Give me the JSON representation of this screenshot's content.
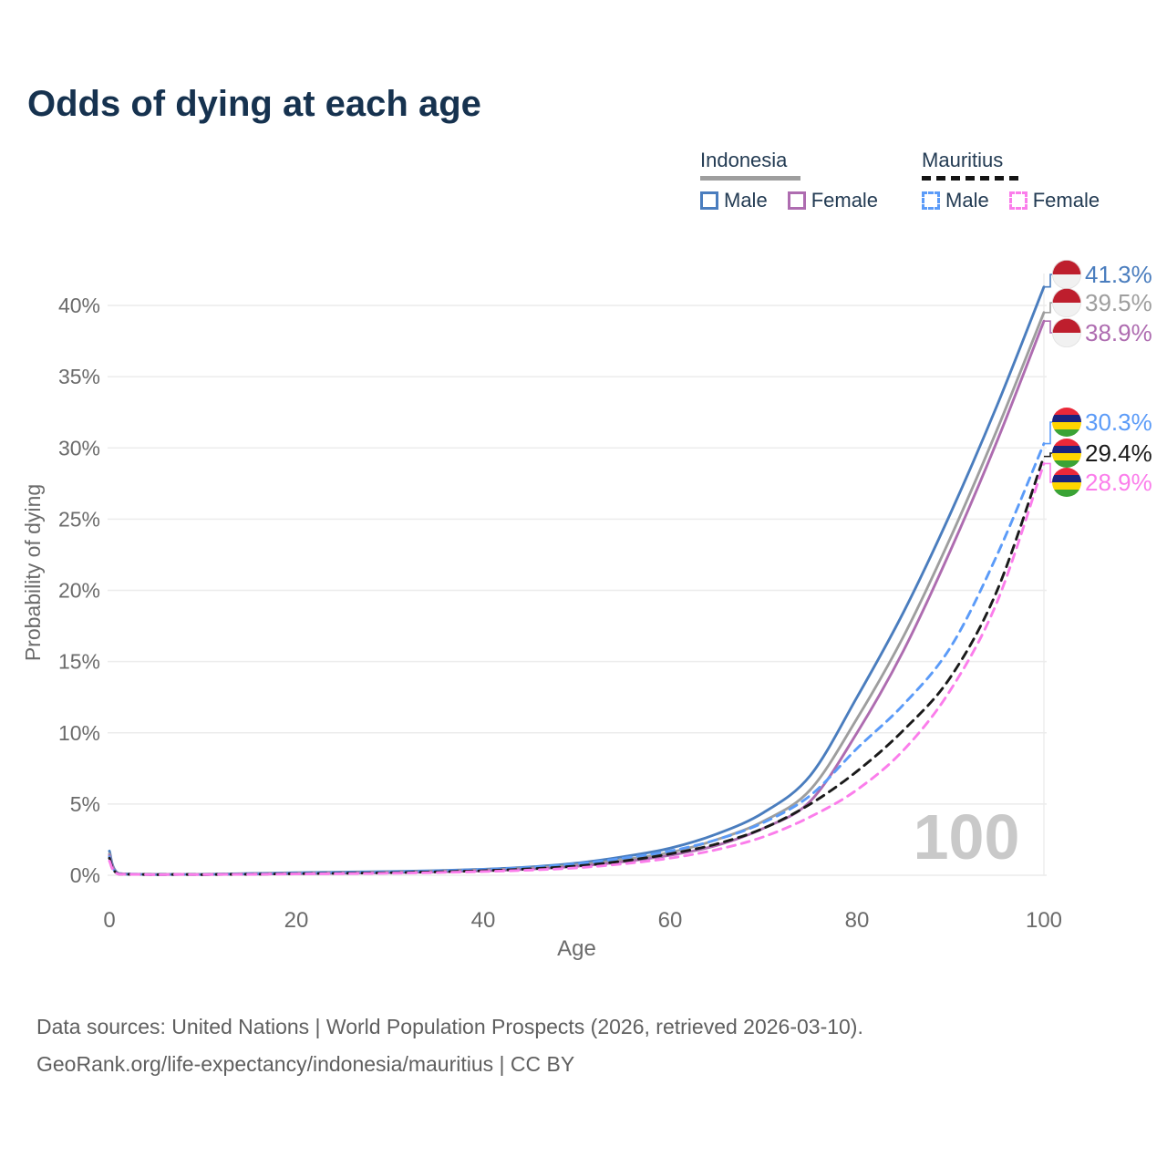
{
  "title": "Odds of dying at each age",
  "legend": {
    "groups": [
      {
        "country": "Indonesia",
        "line_style": "solid",
        "underline_color": "#9E9E9E",
        "items": [
          {
            "label": "Male",
            "color": "#4A7DBE"
          },
          {
            "label": "Female",
            "color": "#AE6CB0"
          }
        ]
      },
      {
        "country": "Mauritius",
        "line_style": "dashed",
        "underline_color": "#141414",
        "items": [
          {
            "label": "Male",
            "color": "#5B9BF8"
          },
          {
            "label": "Female",
            "color": "#FB7DEB"
          }
        ]
      }
    ]
  },
  "chart_data": {
    "type": "line",
    "title": "Odds of dying at each age",
    "xlabel": "Age",
    "ylabel": "Probability of dying",
    "xlim": [
      0,
      100
    ],
    "ylim_percent": [
      0,
      43
    ],
    "x_ticks": [
      0,
      20,
      40,
      60,
      80,
      100
    ],
    "y_ticks_percent": [
      0,
      5,
      10,
      15,
      20,
      25,
      30,
      35,
      40
    ],
    "grid": "horizontal-only, plus right edge vertical line at age 100",
    "legend_position": "top-right",
    "watermark": "100",
    "x_ages": [
      0,
      1,
      5,
      10,
      15,
      20,
      25,
      30,
      35,
      40,
      45,
      50,
      55,
      60,
      65,
      70,
      75,
      80,
      85,
      90,
      95,
      100
    ],
    "series": [
      {
        "name": "Indonesia Male",
        "country": "Indonesia",
        "sex": "Male",
        "flag": "indonesia",
        "color": "#4A7DBE",
        "dash": "solid",
        "end_label": "41.3%",
        "end_value": 41.3,
        "values": [
          1.7,
          0.12,
          0.06,
          0.07,
          0.12,
          0.18,
          0.22,
          0.26,
          0.32,
          0.42,
          0.58,
          0.85,
          1.3,
          1.9,
          2.9,
          4.4,
          7.0,
          12.5,
          18.5,
          25.4,
          33.0,
          41.3
        ]
      },
      {
        "name": "Indonesia Both sexes",
        "country": "Indonesia",
        "sex": "Both",
        "flag": "indonesia",
        "color": "#9E9E9E",
        "dash": "solid",
        "end_label": "39.5%",
        "end_value": 39.5,
        "values": [
          1.5,
          0.11,
          0.05,
          0.06,
          0.1,
          0.15,
          0.18,
          0.22,
          0.28,
          0.37,
          0.5,
          0.73,
          1.1,
          1.6,
          2.5,
          3.8,
          6.0,
          11.0,
          16.8,
          23.7,
          31.3,
          39.5
        ]
      },
      {
        "name": "Indonesia Female",
        "country": "Indonesia",
        "sex": "Female",
        "flag": "indonesia",
        "color": "#AE6CB0",
        "dash": "solid",
        "end_label": "38.9%",
        "end_value": 38.9,
        "values": [
          1.4,
          0.1,
          0.05,
          0.05,
          0.08,
          0.11,
          0.14,
          0.18,
          0.23,
          0.31,
          0.43,
          0.63,
          0.95,
          1.4,
          2.1,
          3.3,
          5.2,
          10.0,
          15.8,
          22.8,
          30.5,
          38.9
        ]
      },
      {
        "name": "Mauritius Male",
        "country": "Mauritius",
        "sex": "Male",
        "flag": "mauritius",
        "color": "#5B9BF8",
        "dash": "dashed",
        "end_label": "30.3%",
        "end_value": 30.3,
        "values": [
          1.3,
          0.09,
          0.04,
          0.05,
          0.09,
          0.14,
          0.18,
          0.23,
          0.3,
          0.4,
          0.55,
          0.8,
          1.2,
          1.7,
          2.5,
          3.7,
          5.6,
          8.9,
          12.0,
          16.0,
          22.5,
          30.3
        ]
      },
      {
        "name": "Mauritius Both sexes",
        "country": "Mauritius",
        "sex": "Both",
        "flag": "mauritius",
        "color": "#1A1A1A",
        "dash": "dashed",
        "end_label": "29.4%",
        "end_value": 29.4,
        "values": [
          1.2,
          0.08,
          0.04,
          0.04,
          0.07,
          0.11,
          0.14,
          0.18,
          0.24,
          0.32,
          0.45,
          0.65,
          1.0,
          1.5,
          2.2,
          3.3,
          5.0,
          7.3,
          10.2,
          13.9,
          20.0,
          29.4
        ]
      },
      {
        "name": "Mauritius Female",
        "country": "Mauritius",
        "sex": "Female",
        "flag": "mauritius",
        "color": "#FB7DEB",
        "dash": "dashed",
        "end_label": "28.9%",
        "end_value": 28.9,
        "values": [
          1.0,
          0.07,
          0.03,
          0.04,
          0.06,
          0.09,
          0.11,
          0.14,
          0.19,
          0.26,
          0.36,
          0.52,
          0.8,
          1.2,
          1.8,
          2.7,
          4.1,
          6.0,
          8.8,
          13.0,
          19.2,
          28.9
        ]
      }
    ],
    "flag_colors": {
      "indonesia": {
        "top": "#BE1E2D",
        "bottom": "#F1F1F1"
      },
      "mauritius": {
        "stripes": [
          "#EA2839",
          "#1A237E",
          "#FFD500",
          "#3AA335"
        ]
      }
    },
    "axis_text_color": "#6b6b6b",
    "gridline_color": "#ececec",
    "watermark_color": "#c9c9c9"
  },
  "footer": {
    "line1": "Data sources: United Nations | World Population Prospects (2026, retrieved 2026-03-10).",
    "line2": "GeoRank.org/life-expectancy/indonesia/mauritius | CC BY"
  }
}
